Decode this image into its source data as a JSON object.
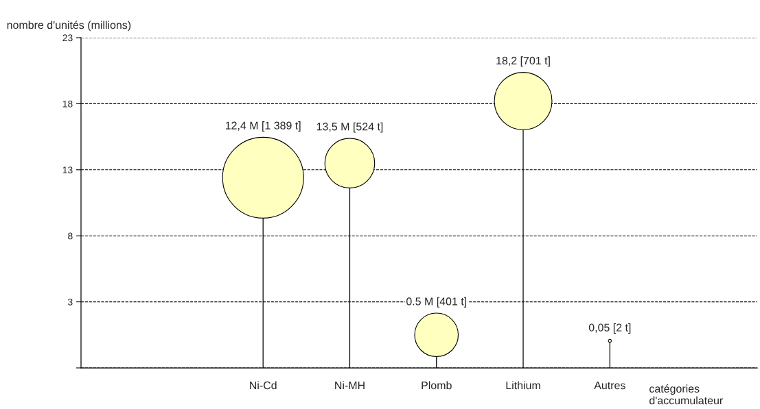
{
  "chart_data": {
    "type": "bubble",
    "errors": [
      null,
      null,
      [
        -2,
        12.4
      ],
      [
        -2,
        13.5
      ],
      [
        -2,
        0.5
      ],
      [
        -2,
        18.2
      ],
      [
        -2,
        0.05
      ],
      null
    ],
    "ylabel": "nombre d'unités (millions)",
    "xlabel": "catégories\nd'accumulateur",
    "categories": [
      null,
      null,
      "Ni-Cd",
      "Ni-MH",
      "Plomb",
      "Lithium",
      "Autres",
      null
    ],
    "values": [
      null,
      null,
      12.4,
      13.5,
      0.5,
      18.2,
      0.05,
      null
    ],
    "sizes": [
      null,
      null,
      1,
      0.377,
      0.289,
      0.505,
      0.0014,
      null
    ],
    "value_labels": [
      null,
      null,
      "12,4 M [1 389 t]",
      "13,5 M [524 t]",
      "0.5 M [401 t]",
      "18,2 [701 t]",
      "0,05 [2 t]",
      null
    ],
    "color": "#ffffc0",
    "ylim": [
      -2,
      23
    ],
    "yticks": [
      {
        "value": -2,
        "label": null
      },
      3,
      8,
      13,
      18,
      23
    ],
    "grid": "y",
    "line_style": "dashed"
  }
}
